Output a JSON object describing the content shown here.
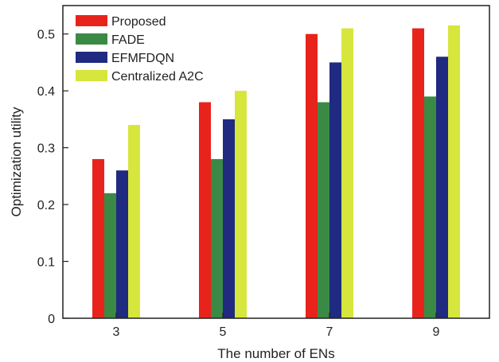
{
  "chart_data": {
    "type": "bar",
    "title": "",
    "xlabel": "The number of ENs",
    "ylabel": "Optimization utility",
    "categories": [
      "3",
      "5",
      "7",
      "9"
    ],
    "ylim": [
      0,
      0.55
    ],
    "yticks": [
      0,
      0.1,
      0.2,
      0.3,
      0.4,
      0.5
    ],
    "ytick_labels": [
      "0",
      "0.1",
      "0.2",
      "0.3",
      "0.4",
      "0.5"
    ],
    "grid": false,
    "legend_position": "top-left",
    "series": [
      {
        "name": "Proposed",
        "color": "#e8231c",
        "values": [
          0.28,
          0.38,
          0.5,
          0.51
        ]
      },
      {
        "name": "FADE",
        "color": "#3a8a45",
        "values": [
          0.22,
          0.28,
          0.38,
          0.39
        ]
      },
      {
        "name": "EFMFDQN",
        "color": "#1f2a80",
        "values": [
          0.26,
          0.35,
          0.45,
          0.46
        ]
      },
      {
        "name": "Centralized A2C",
        "color": "#d6e63c",
        "values": [
          0.34,
          0.4,
          0.51,
          0.515
        ]
      }
    ]
  }
}
